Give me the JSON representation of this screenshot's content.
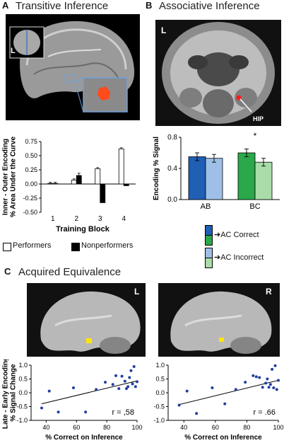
{
  "panels": {
    "a": {
      "letter": "A",
      "title": "Transitive Inference"
    },
    "b": {
      "letter": "B",
      "title": "Associative Inference"
    },
    "c": {
      "letter": "C",
      "title": "Acquired Equivalence"
    }
  },
  "brain_labels": {
    "a_inset": "L",
    "b_side": "L",
    "b_roi": "HIP",
    "c_left": "L",
    "c_right": "R"
  },
  "colors": {
    "performers": "#ffffff",
    "nonperformers": "#000000",
    "ac_correct_ab": "#1f5fb4",
    "ac_correct_bc": "#2aa84a",
    "ac_incorrect_ab": "#9ec0e8",
    "ac_incorrect_bc": "#a9dca9",
    "scatter_point": "#1f3fa0",
    "roi_orange": "#ff4a1a",
    "roi_yellow": "#ffe600"
  },
  "legend_a": {
    "performers": "Performers",
    "nonperformers": "Nonperformers"
  },
  "legend_b": {
    "correct": "➔AC Correct",
    "incorrect": "➔AC Incorrect"
  },
  "chart_data": [
    {
      "id": "A",
      "type": "bar",
      "ylabel": "Inner - Outer Encoding\n% Area Under the Curve",
      "xlabel": "Training Block",
      "ylim": [
        -0.5,
        0.75
      ],
      "yticks": [
        "0.75",
        "0.50",
        "0.25",
        "0.00",
        "-0.25",
        "-0.50"
      ],
      "categories": [
        "1",
        "2",
        "3",
        "4"
      ],
      "series": [
        {
          "name": "Performers",
          "values": [
            0.01,
            0.07,
            0.27,
            0.62
          ],
          "errors": [
            0.02,
            0.02,
            0.02,
            0.02
          ]
        },
        {
          "name": "Nonperformers",
          "values": [
            0.01,
            0.15,
            -0.33,
            -0.03
          ],
          "errors": [
            0.02,
            0.04,
            0.0,
            0.0
          ]
        }
      ]
    },
    {
      "id": "B",
      "type": "bar",
      "ylabel": "Encoding % Signal",
      "ylim": [
        0.0,
        0.8
      ],
      "yticks": [
        "0.8",
        "0.4",
        "0.0"
      ],
      "categories": [
        "AB",
        "BC"
      ],
      "annotation": "*",
      "series": [
        {
          "name": "AC Correct",
          "values": [
            0.55,
            0.6
          ],
          "errors": [
            0.05,
            0.05
          ]
        },
        {
          "name": "AC Incorrect",
          "values": [
            0.53,
            0.48
          ],
          "errors": [
            0.05,
            0.05
          ]
        }
      ]
    },
    {
      "id": "C-L",
      "type": "scatter",
      "xlabel": "% Correct on Inference",
      "ylabel": "Late - Early Encoding\n% Signal Change",
      "xlim": [
        30,
        100
      ],
      "ylim": [
        -1.0,
        1.0
      ],
      "xticks": [
        "40",
        "60",
        "80",
        "100"
      ],
      "yticks": [
        "1.0",
        "0.5",
        "0.0",
        "-0.5",
        "-1.0"
      ],
      "annotation": "r = ,58",
      "fit": {
        "x": [
          37,
          100
        ],
        "y": [
          -0.4,
          0.43
        ]
      },
      "points": [
        {
          "x": 37,
          "y": -0.55
        },
        {
          "x": 42,
          "y": 0.06
        },
        {
          "x": 48,
          "y": -0.7
        },
        {
          "x": 58,
          "y": 0.18
        },
        {
          "x": 66,
          "y": -0.7
        },
        {
          "x": 73,
          "y": 0.12
        },
        {
          "x": 79,
          "y": 0.38
        },
        {
          "x": 84,
          "y": 0.3
        },
        {
          "x": 86,
          "y": 0.62
        },
        {
          "x": 88,
          "y": 0.15
        },
        {
          "x": 90,
          "y": 0.6
        },
        {
          "x": 92,
          "y": 0.42
        },
        {
          "x": 93,
          "y": 0.15
        },
        {
          "x": 94,
          "y": 0.22
        },
        {
          "x": 95,
          "y": 0.55
        },
        {
          "x": 96,
          "y": 0.8
        },
        {
          "x": 97,
          "y": 0.32
        },
        {
          "x": 98,
          "y": 0.95
        },
        {
          "x": 99,
          "y": 0.22
        },
        {
          "x": 100,
          "y": 0.4
        }
      ]
    },
    {
      "id": "C-R",
      "type": "scatter",
      "xlim": [
        30,
        100
      ],
      "ylim": [
        -1.0,
        1.0
      ],
      "xticks": [
        "40",
        "60",
        "80",
        "100"
      ],
      "yticks": [
        "1.0",
        "0.5",
        "0.0",
        "-0.5",
        "-1.0"
      ],
      "xlabel": "% Correct on Inference",
      "annotation": "r = .66",
      "fit": {
        "x": [
          37,
          100
        ],
        "y": [
          -0.43,
          0.45
        ]
      },
      "points": [
        {
          "x": 37,
          "y": -0.45
        },
        {
          "x": 42,
          "y": 0.06
        },
        {
          "x": 48,
          "y": -0.75
        },
        {
          "x": 58,
          "y": 0.18
        },
        {
          "x": 66,
          "y": -0.4
        },
        {
          "x": 73,
          "y": 0.12
        },
        {
          "x": 79,
          "y": 0.38
        },
        {
          "x": 84,
          "y": 0.62
        },
        {
          "x": 86,
          "y": 0.58
        },
        {
          "x": 88,
          "y": 0.55
        },
        {
          "x": 90,
          "y": 0.2
        },
        {
          "x": 92,
          "y": 0.35
        },
        {
          "x": 93,
          "y": 0.5
        },
        {
          "x": 94,
          "y": 0.2
        },
        {
          "x": 95,
          "y": 0.3
        },
        {
          "x": 96,
          "y": 0.85
        },
        {
          "x": 97,
          "y": 0.18
        },
        {
          "x": 98,
          "y": 0.98
        },
        {
          "x": 99,
          "y": 0.12
        },
        {
          "x": 100,
          "y": 0.45
        }
      ]
    }
  ]
}
